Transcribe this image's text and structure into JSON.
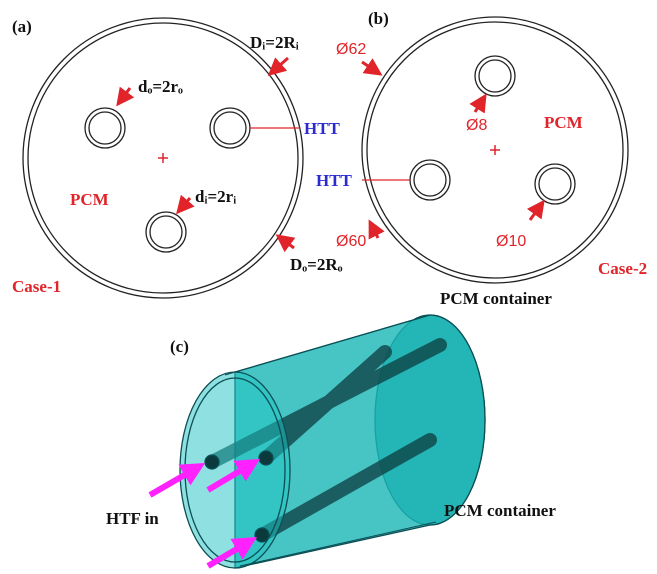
{
  "panel_a": {
    "label": "(a)",
    "outer_label": "Dᵢ=2Rᵢ",
    "tube_outer_label": "dₒ=2rₒ",
    "htt": "HTT",
    "pcm": "PCM",
    "tube_inner_label": "dᵢ=2rᵢ",
    "container_outer_label": "Dₒ=2Rₒ",
    "case": "Case-1"
  },
  "panel_b": {
    "label": "(b)",
    "outer_dia": "Ø62",
    "tube_dia": "Ø8",
    "pcm": "PCM",
    "htt": "HTT",
    "inner_dia": "Ø60",
    "tube_dia_2": "Ø10",
    "case": "Case-2",
    "container": "PCM container"
  },
  "panel_c": {
    "label": "(c)",
    "htf_in": "HTF in",
    "container": "PCM container"
  }
}
